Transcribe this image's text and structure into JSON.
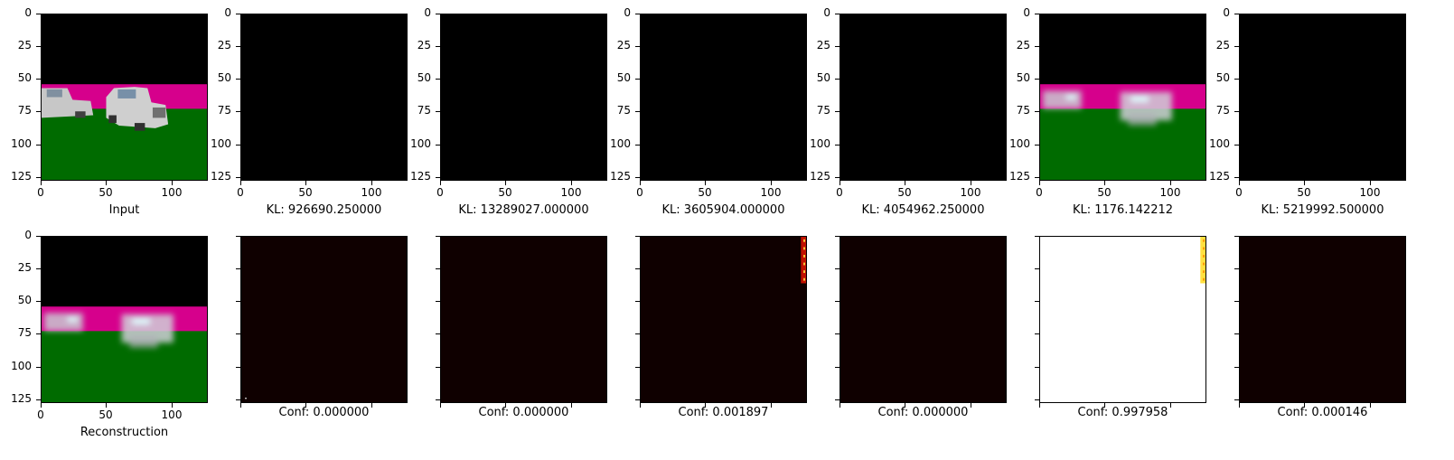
{
  "chart_data": {
    "type": "image-grid",
    "top_row": [
      {
        "kind": "image",
        "caption": "Input",
        "content": "rendered scene: black sky, magenta horizon band, green ground, two white cars"
      },
      {
        "kind": "image",
        "caption": "KL: 926690.250000",
        "content": "black"
      },
      {
        "kind": "image",
        "caption": "KL: 13289027.000000",
        "content": "black"
      },
      {
        "kind": "image",
        "caption": "KL: 3605904.000000",
        "content": "black"
      },
      {
        "kind": "image",
        "caption": "KL: 4054962.250000",
        "content": "black"
      },
      {
        "kind": "image",
        "caption": "KL: 1176.142212",
        "content": "blurry reconstruction of scene"
      },
      {
        "kind": "image",
        "caption": "KL: 5219992.500000",
        "content": "black"
      }
    ],
    "bottom_row": [
      {
        "kind": "image",
        "caption": "Reconstruction",
        "content": "blurry reconstruction of scene"
      },
      {
        "kind": "heatmap",
        "caption": "Conf: 0.000000",
        "fill": "#0f0000"
      },
      {
        "kind": "heatmap",
        "caption": "Conf: 0.000000",
        "fill": "#0f0000"
      },
      {
        "kind": "heatmap",
        "caption": "Conf: 0.001897",
        "fill": "#0f0000",
        "hot_strip": "right edge, rows 0-35"
      },
      {
        "kind": "heatmap",
        "caption": "Conf: 0.000000",
        "fill": "#0f0000"
      },
      {
        "kind": "heatmap",
        "caption": "Conf: 0.997958",
        "fill": "#ffffff",
        "hot_strip": "right edge, rows 0-35"
      },
      {
        "kind": "heatmap",
        "caption": "Conf: 0.000146",
        "fill": "#0f0000"
      }
    ],
    "x_ticks": [
      "0",
      "50",
      "100"
    ],
    "y_ticks": [
      "0",
      "25",
      "50",
      "75",
      "100",
      "125"
    ],
    "xlim": [
      0,
      128
    ],
    "ylim": [
      128,
      0
    ]
  },
  "colors": {
    "sky": "#000000",
    "horizon": "#d6008c",
    "ground": "#006b00",
    "car": "#bfbfbf",
    "heat_dark": "#0f0000",
    "heat_hot": "#ffe040",
    "heat_red": "#c01000"
  }
}
